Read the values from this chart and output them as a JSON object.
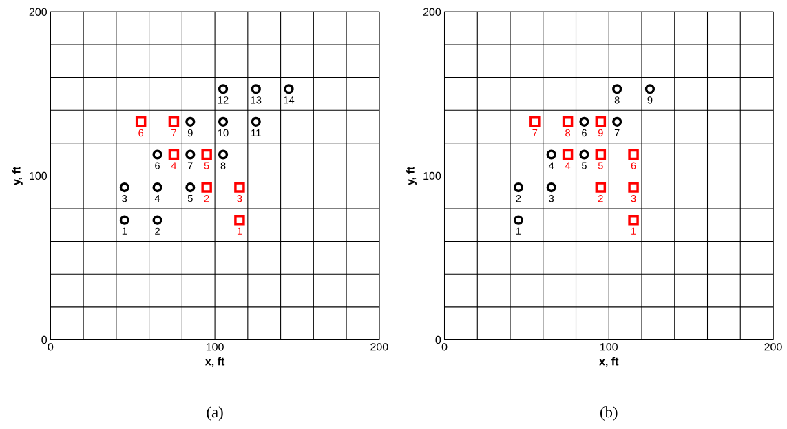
{
  "chart_data": [
    {
      "type": "scatter",
      "xlabel": "x, ft",
      "ylabel": "y, ft",
      "xlim": [
        0,
        200
      ],
      "ylim": [
        0,
        200
      ],
      "xticks": [
        0,
        {
          "value": 20,
          "label": null
        },
        {
          "value": 40,
          "label": null
        },
        {
          "value": 60,
          "label": null
        },
        {
          "value": 80,
          "label": null
        },
        100,
        {
          "value": 120,
          "label": null
        },
        {
          "value": 140,
          "label": null
        },
        {
          "value": 160,
          "label": null
        },
        {
          "value": 180,
          "label": null
        },
        200
      ],
      "yticks": [
        0,
        {
          "value": 20,
          "label": null
        },
        {
          "value": 40,
          "label": null
        },
        {
          "value": 60,
          "label": null
        },
        {
          "value": 80,
          "label": null
        },
        100,
        {
          "value": 120,
          "label": null
        },
        {
          "value": 140,
          "label": null
        },
        {
          "value": 160,
          "label": null
        },
        {
          "value": 180,
          "label": null
        },
        200
      ],
      "grid": true,
      "series": [
        {
          "color": "#000000",
          "marker": "circle",
          "x": [
            45,
            65,
            45,
            65,
            85,
            65,
            85,
            105,
            85,
            105,
            125,
            105,
            125,
            145
          ],
          "values": [
            73,
            73,
            93,
            93,
            93,
            113,
            113,
            113,
            133,
            133,
            133,
            153,
            153,
            153
          ]
        },
        {
          "color": "#ff0000",
          "marker": "square",
          "x": [
            115,
            95,
            115,
            75,
            95,
            55,
            75
          ],
          "values": [
            73,
            93,
            93,
            113,
            113,
            133,
            133
          ]
        }
      ],
      "annotations": [
        "(a)",
        {
          "text": "1",
          "x": 45,
          "y": 73
        },
        {
          "text": "2",
          "x": 65,
          "y": 73
        },
        {
          "text": "3",
          "x": 45,
          "y": 93
        },
        {
          "text": "4",
          "x": 65,
          "y": 93
        },
        {
          "text": "5",
          "x": 85,
          "y": 93
        },
        {
          "text": "6",
          "x": 65,
          "y": 113
        },
        {
          "text": "7",
          "x": 85,
          "y": 113
        },
        {
          "text": "8",
          "x": 105,
          "y": 113
        },
        {
          "text": "9",
          "x": 85,
          "y": 133
        },
        {
          "text": "10",
          "x": 105,
          "y": 133
        },
        {
          "text": "11",
          "x": 125,
          "y": 133
        },
        {
          "text": "12",
          "x": 105,
          "y": 153
        },
        {
          "text": "13",
          "x": 125,
          "y": 153
        },
        {
          "text": "14",
          "x": 145,
          "y": 153
        },
        {
          "text": "1",
          "x": 115,
          "y": 73
        },
        {
          "text": "2",
          "x": 95,
          "y": 93
        },
        {
          "text": "3",
          "x": 115,
          "y": 93
        },
        {
          "text": "4",
          "x": 75,
          "y": 113
        },
        {
          "text": "5",
          "x": 95,
          "y": 113
        },
        {
          "text": "6",
          "x": 55,
          "y": 133
        },
        {
          "text": "7",
          "x": 75,
          "y": 133
        }
      ]
    },
    {
      "type": "scatter",
      "xlabel": "x, ft",
      "ylabel": "y, ft",
      "xlim": [
        0,
        200
      ],
      "ylim": [
        0,
        200
      ],
      "xticks": [
        0,
        {
          "value": 20,
          "label": null
        },
        {
          "value": 40,
          "label": null
        },
        {
          "value": 60,
          "label": null
        },
        {
          "value": 80,
          "label": null
        },
        100,
        {
          "value": 120,
          "label": null
        },
        {
          "value": 140,
          "label": null
        },
        {
          "value": 160,
          "label": null
        },
        {
          "value": 180,
          "label": null
        },
        200
      ],
      "yticks": [
        0,
        {
          "value": 20,
          "label": null
        },
        {
          "value": 40,
          "label": null
        },
        {
          "value": 60,
          "label": null
        },
        {
          "value": 80,
          "label": null
        },
        100,
        {
          "value": 120,
          "label": null
        },
        {
          "value": 140,
          "label": null
        },
        {
          "value": 160,
          "label": null
        },
        {
          "value": 180,
          "label": null
        },
        200
      ],
      "grid": true,
      "series": [
        {
          "color": "#000000",
          "marker": "circle",
          "x": [
            45,
            45,
            65,
            65,
            85,
            85,
            105,
            105,
            125
          ],
          "values": [
            73,
            93,
            93,
            113,
            113,
            133,
            133,
            153,
            153
          ]
        },
        {
          "color": "#ff0000",
          "marker": "square",
          "x": [
            115,
            95,
            115,
            75,
            95,
            115,
            55,
            75,
            95
          ],
          "values": [
            73,
            93,
            93,
            113,
            113,
            113,
            133,
            133,
            133
          ]
        }
      ],
      "annotations": [
        "(b)",
        {
          "text": "1",
          "x": 45,
          "y": 73
        },
        {
          "text": "2",
          "x": 45,
          "y": 93
        },
        {
          "text": "3",
          "x": 65,
          "y": 93
        },
        {
          "text": "4",
          "x": 65,
          "y": 113
        },
        {
          "text": "5",
          "x": 85,
          "y": 113
        },
        {
          "text": "6",
          "x": 85,
          "y": 133
        },
        {
          "text": "7",
          "x": 105,
          "y": 133
        },
        {
          "text": "8",
          "x": 105,
          "y": 153
        },
        {
          "text": "9",
          "x": 125,
          "y": 153
        },
        {
          "text": "1",
          "x": 115,
          "y": 73
        },
        {
          "text": "2",
          "x": 95,
          "y": 93
        },
        {
          "text": "3",
          "x": 115,
          "y": 93
        },
        {
          "text": "4",
          "x": 75,
          "y": 113
        },
        {
          "text": "5",
          "x": 95,
          "y": 113
        },
        {
          "text": "6",
          "x": 115,
          "y": 113
        },
        {
          "text": "7",
          "x": 55,
          "y": 133
        },
        {
          "text": "8",
          "x": 75,
          "y": 133
        },
        {
          "text": "9",
          "x": 95,
          "y": 133
        }
      ]
    }
  ]
}
